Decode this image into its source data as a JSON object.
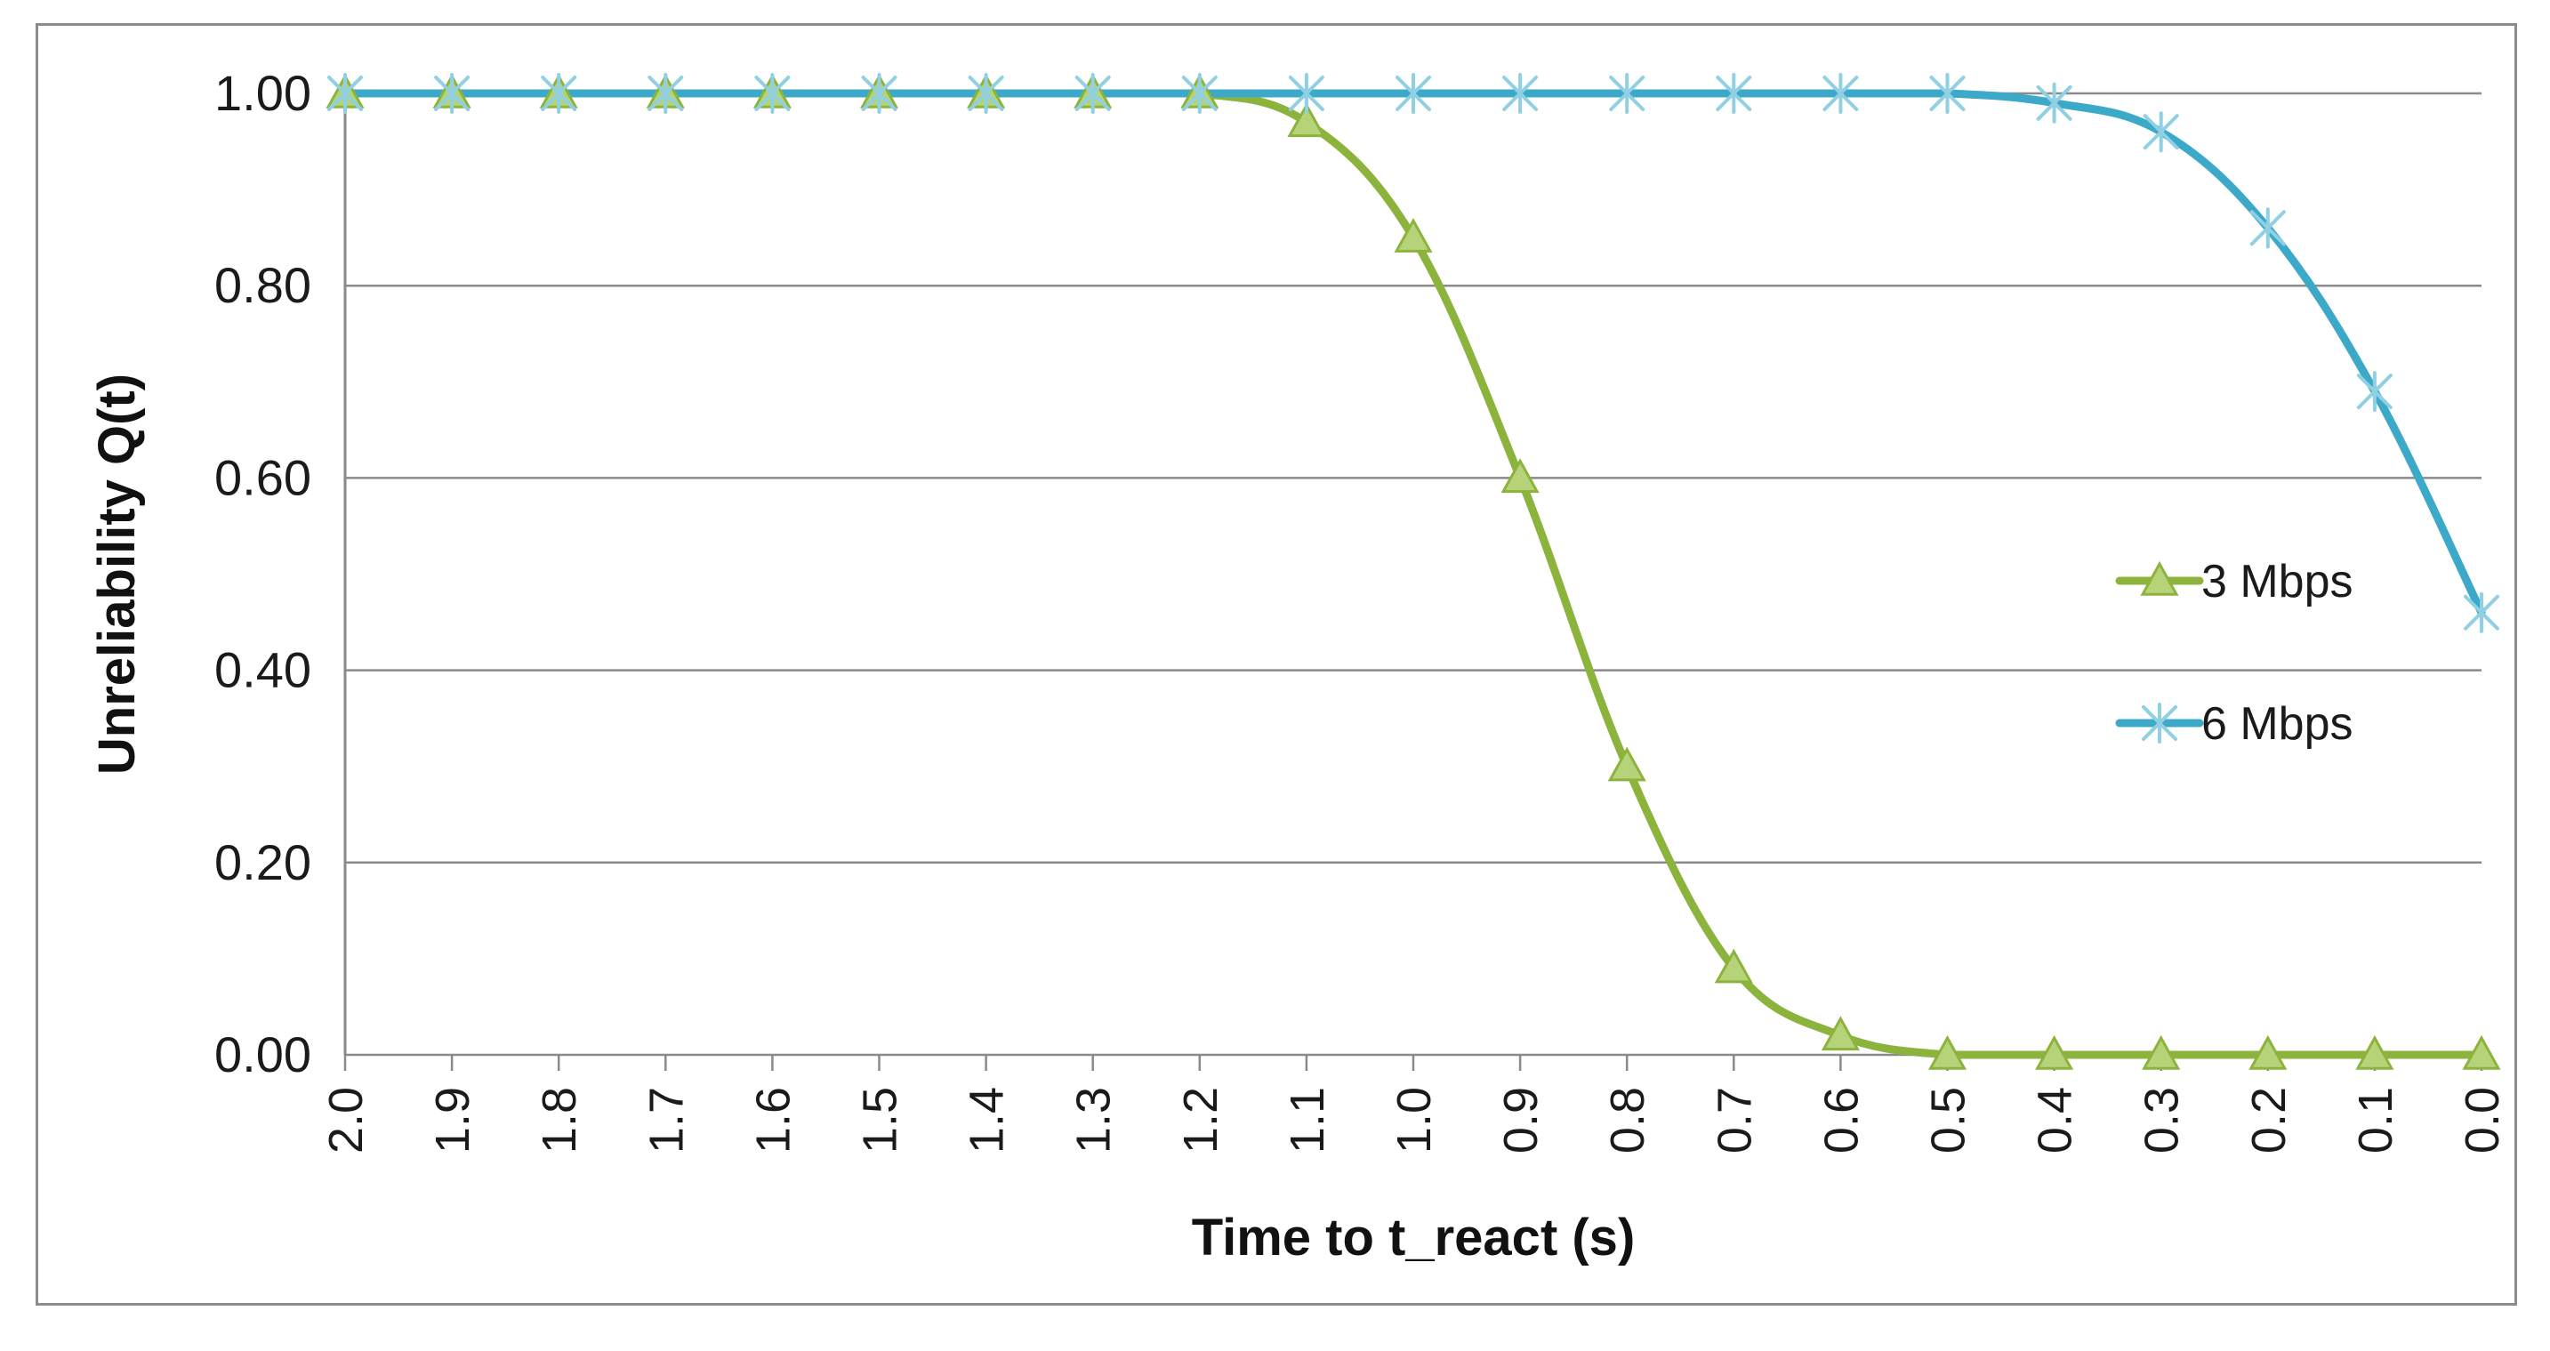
{
  "chart_data": {
    "type": "line",
    "title": "",
    "xlabel": "Time to t_react (s)",
    "ylabel": "Unreliability Q(t)",
    "x": [
      "2.0",
      "1.9",
      "1.8",
      "1.7",
      "1.6",
      "1.5",
      "1.4",
      "1.3",
      "1.2",
      "1.1",
      "1.0",
      "0.9",
      "0.8",
      "0.7",
      "0.6",
      "0.5",
      "0.4",
      "0.3",
      "0.2",
      "0.1",
      "0.0"
    ],
    "x_reversed": true,
    "ylim": [
      0,
      1
    ],
    "yticks": [
      "0.00",
      "0.20",
      "0.40",
      "0.60",
      "0.80",
      "1.00"
    ],
    "grid": "horizontal",
    "legend_position": "right",
    "series": [
      {
        "name": "3 Mbps",
        "color": "#8cb33c",
        "marker": "triangle",
        "values": [
          1.0,
          1.0,
          1.0,
          1.0,
          1.0,
          1.0,
          1.0,
          1.0,
          1.0,
          0.97,
          0.85,
          0.6,
          0.3,
          0.09,
          0.02,
          0.0,
          0.0,
          0.0,
          0.0,
          0.0,
          0.0
        ]
      },
      {
        "name": "6 Mbps",
        "color": "#3da9c9",
        "marker": "asterisk",
        "values": [
          1.0,
          1.0,
          1.0,
          1.0,
          1.0,
          1.0,
          1.0,
          1.0,
          1.0,
          1.0,
          1.0,
          1.0,
          1.0,
          1.0,
          1.0,
          1.0,
          0.99,
          0.96,
          0.86,
          0.69,
          0.46
        ]
      }
    ]
  }
}
